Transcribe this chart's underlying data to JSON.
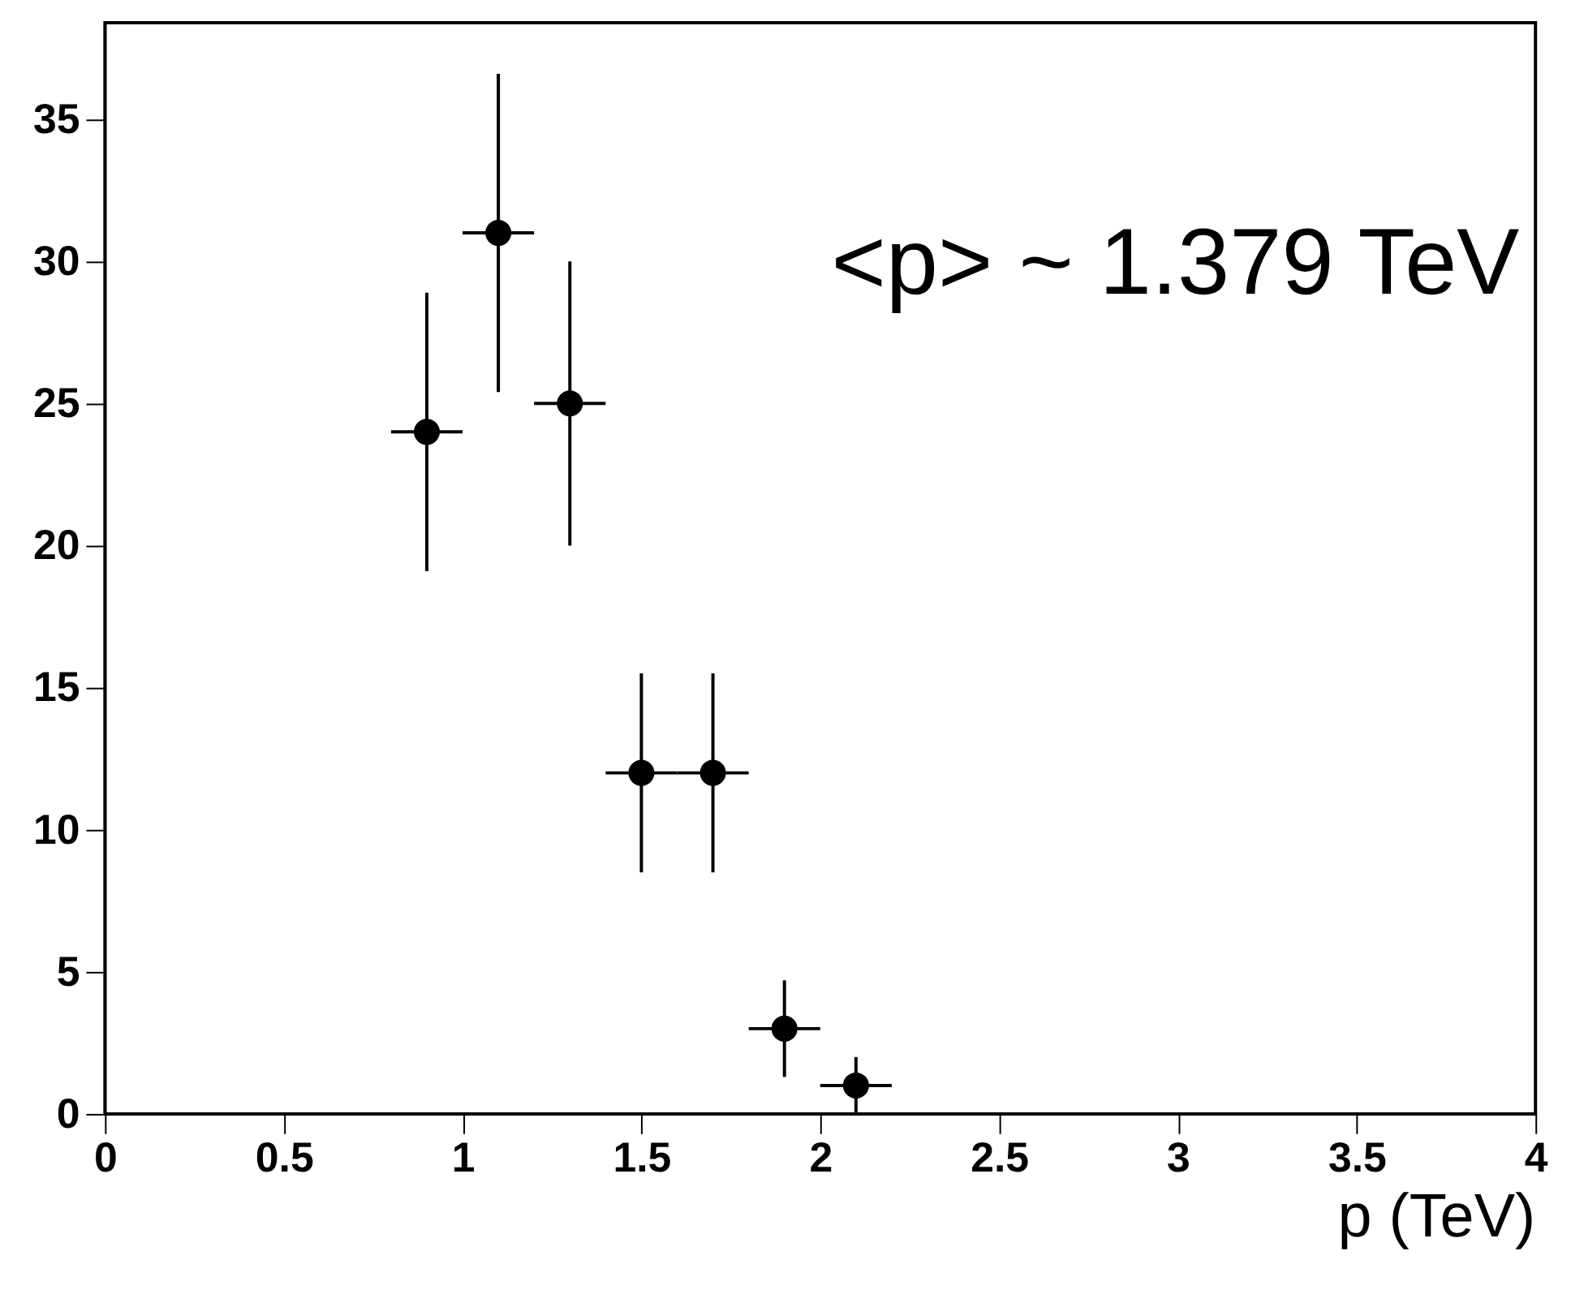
{
  "chart_data": {
    "type": "scatter",
    "xlabel": "p (TeV)",
    "annotations": [
      "<p> ~ 1.379 TeV"
    ],
    "x": [
      0.9,
      1.1,
      1.3,
      1.5,
      1.7,
      1.9,
      2.1
    ],
    "values": [
      24,
      31,
      25,
      12,
      12,
      3,
      1
    ],
    "errors": [
      4.9,
      5.6,
      5,
      3.5,
      3.5,
      1.7,
      1
    ],
    "xerrors": [
      0.1,
      0.1,
      0.1,
      0.1,
      0.1,
      0.1,
      0.1
    ],
    "color": "#000000",
    "marker": "circle",
    "xlim": [
      0,
      4
    ],
    "ylim": [
      0,
      38.4
    ],
    "xticks": [
      0,
      0.5,
      1,
      1.5,
      2,
      2.5,
      3,
      3.5,
      4
    ],
    "yticks": [
      0,
      5,
      10,
      15,
      20,
      25,
      30,
      35
    ],
    "grid": false
  }
}
